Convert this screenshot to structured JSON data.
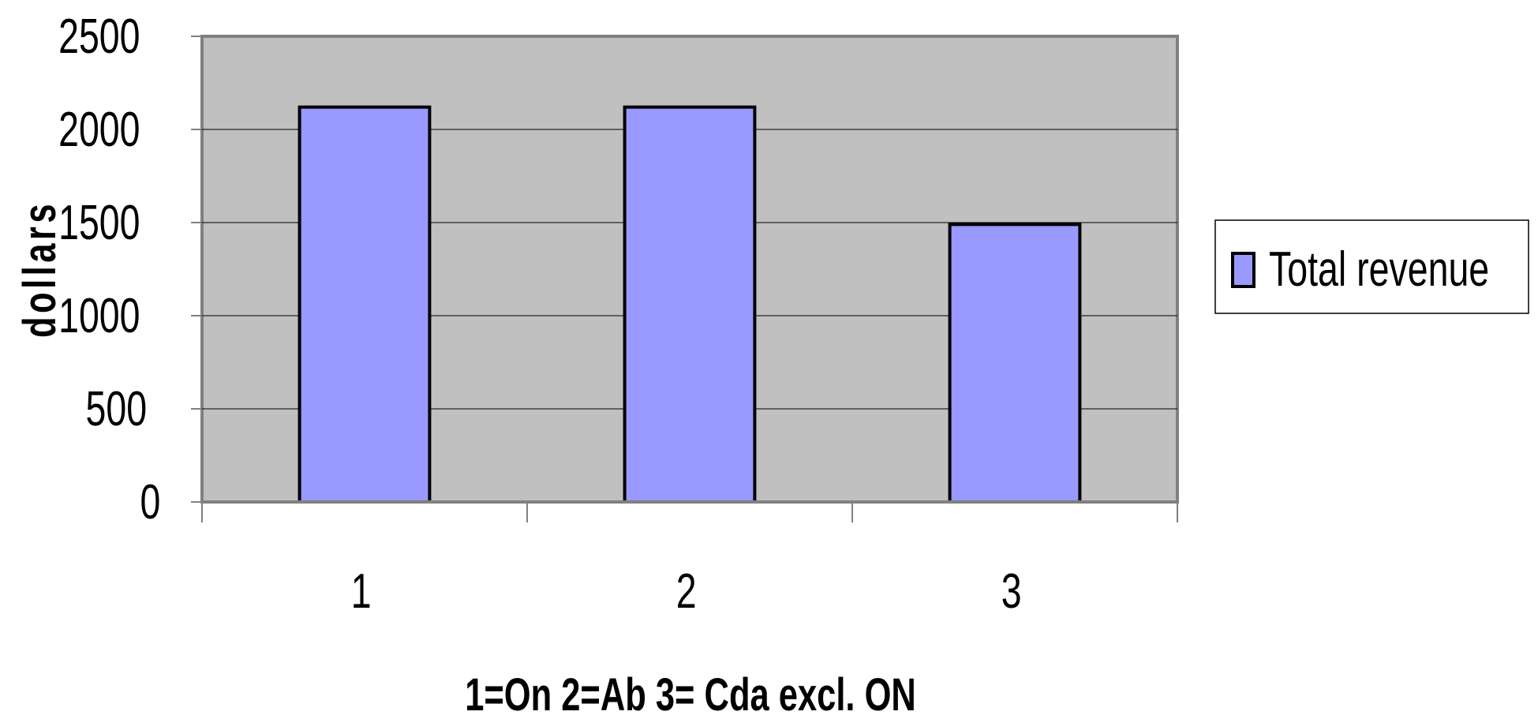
{
  "chart_data": {
    "type": "bar",
    "title": "",
    "xlabel": "1=On 2=Ab 3= Cda excl. ON",
    "ylabel": "dollars",
    "categories": [
      "1",
      "2",
      "3"
    ],
    "series": [
      {
        "name": "Total revenue",
        "values": [
          2120,
          2120,
          1490
        ]
      }
    ],
    "ylim": [
      0,
      2500
    ],
    "yticks": [
      0,
      500,
      1000,
      1500,
      2000,
      2500
    ],
    "grid": true,
    "legend_position": "right",
    "colors": {
      "plot_background": "#c0c0c0",
      "bar_fill": "#9999ff",
      "bar_stroke": "#000000",
      "gridline": "#000000",
      "axis": "#808080"
    }
  }
}
